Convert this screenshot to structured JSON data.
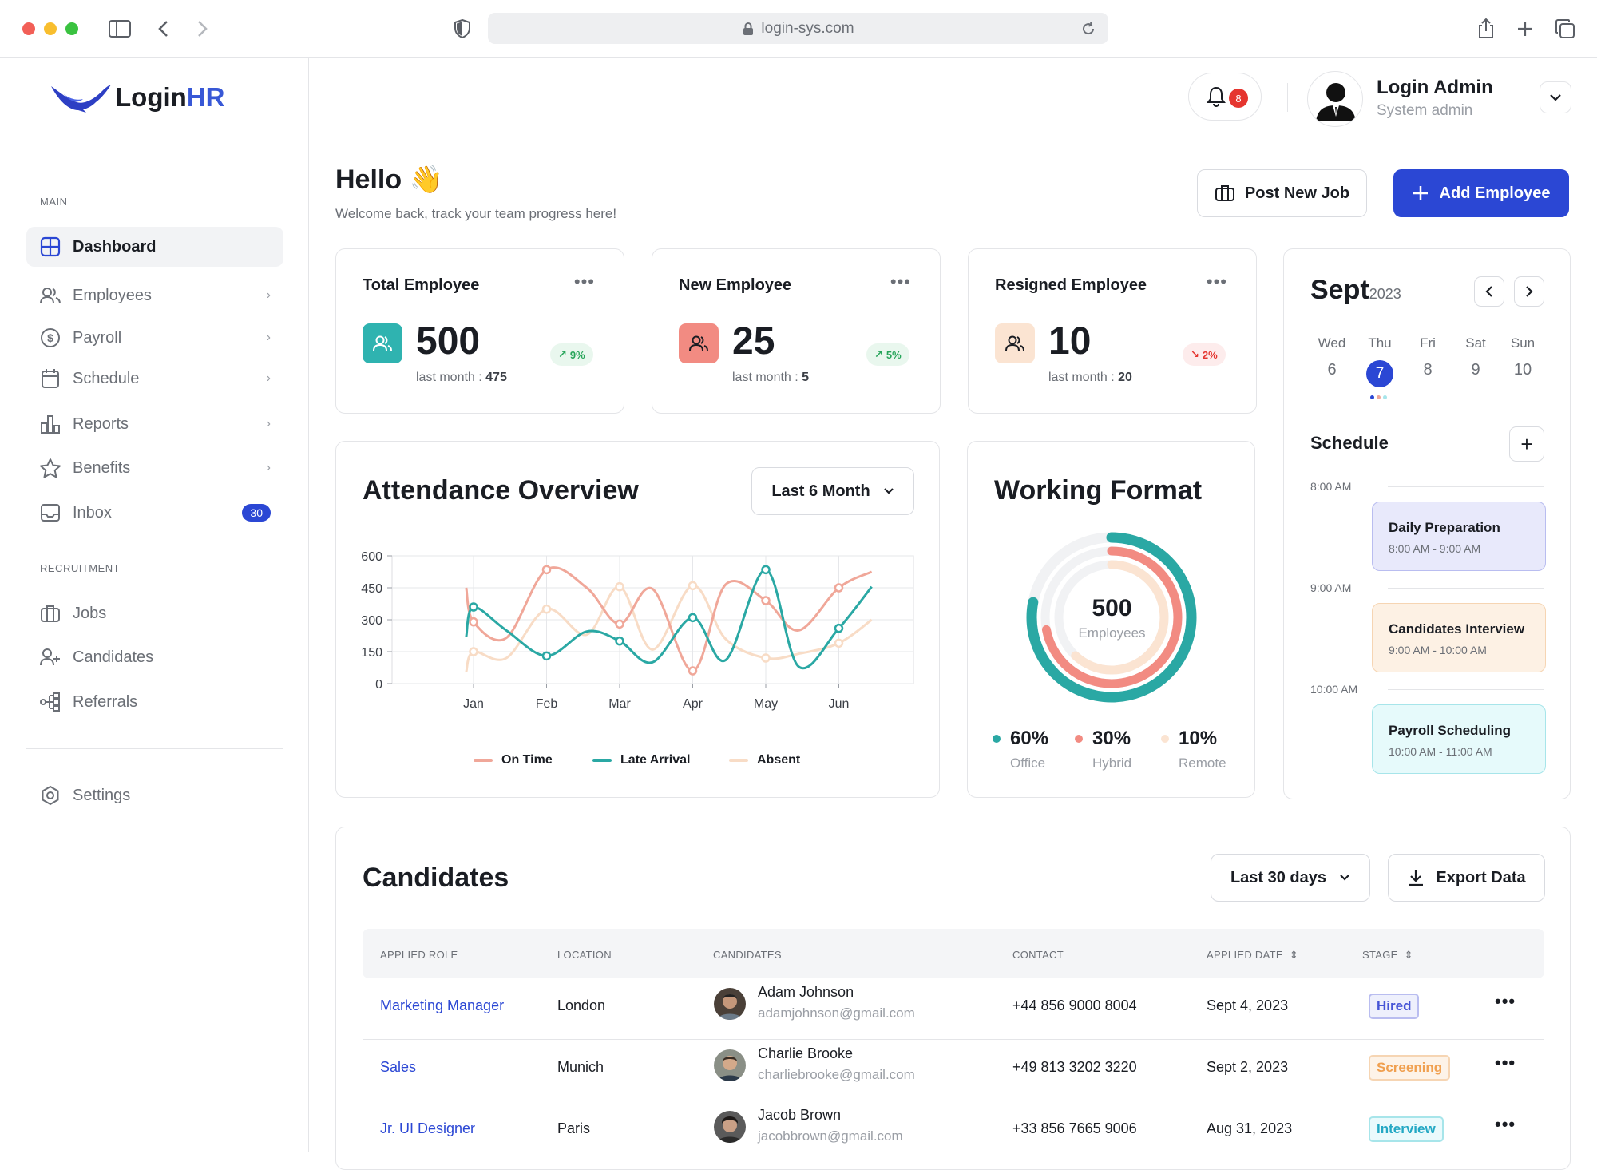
{
  "browser": {
    "url": "login-sys.com"
  },
  "app": {
    "logo_login": "Login",
    "logo_hr": "HR"
  },
  "header": {
    "notification_count": "8",
    "user_name": "Login Admin",
    "user_role": "System admin"
  },
  "sidebar": {
    "section_main": "MAIN",
    "section_recruitment": "RECRUITMENT",
    "items": [
      {
        "label": "Dashboard"
      },
      {
        "label": "Employees"
      },
      {
        "label": "Payroll"
      },
      {
        "label": "Schedule"
      },
      {
        "label": "Reports"
      },
      {
        "label": "Benefits"
      },
      {
        "label": "Inbox",
        "count": "30"
      },
      {
        "label": "Jobs"
      },
      {
        "label": "Candidates"
      },
      {
        "label": "Referrals"
      },
      {
        "label": "Settings"
      }
    ]
  },
  "greeting": {
    "title": "Hello 👋",
    "subtitle": "Welcome back, track your team progress here!"
  },
  "actions": {
    "post_job": "Post New Job",
    "add_employee": "Add Employee"
  },
  "stats": [
    {
      "title": "Total Employee",
      "value": "500",
      "last_label": "last month : ",
      "last_value": "475",
      "trend": "9%",
      "trend_dir": "up",
      "color": "#2fb3b0"
    },
    {
      "title": "New Employee",
      "value": "25",
      "last_label": "last month : ",
      "last_value": "5",
      "trend": "5%",
      "trend_dir": "up",
      "color": "#f28b82"
    },
    {
      "title": "Resigned Employee",
      "value": "10",
      "last_label": "last month : ",
      "last_value": "20",
      "trend": "2%",
      "trend_dir": "down",
      "color": "#fbe4d2"
    }
  ],
  "attendance": {
    "title": "Attendance Overview",
    "filter": "Last 6 Month"
  },
  "chart_data": {
    "type": "line",
    "categories": [
      "Jan",
      "Feb",
      "Mar",
      "Apr",
      "May",
      "Jun"
    ],
    "ylim": [
      0,
      600
    ],
    "yticks": [
      "600",
      "450",
      "300",
      "150",
      "0"
    ],
    "series": [
      {
        "name": "On Time",
        "color": "#f0a799",
        "x": [
          -0.1,
          0.0,
          0.45,
          1.0,
          1.55,
          2.0,
          2.45,
          3.0,
          3.45,
          4.0,
          4.45,
          5.0,
          5.45
        ],
        "values": [
          450,
          290,
          215,
          535,
          450,
          280,
          445,
          60,
          465,
          390,
          250,
          450,
          525
        ]
      },
      {
        "name": "Late Arrival",
        "color": "#2aa8a4",
        "x": [
          -0.1,
          0.0,
          0.45,
          1.0,
          1.55,
          2.0,
          2.45,
          3.0,
          3.45,
          4.0,
          4.45,
          5.0,
          5.45
        ],
        "values": [
          220,
          360,
          250,
          130,
          245,
          200,
          100,
          310,
          110,
          535,
          80,
          260,
          455
        ]
      },
      {
        "name": "Absent",
        "color": "#f8dcc6",
        "x": [
          -0.1,
          0.0,
          0.45,
          1.0,
          1.55,
          2.0,
          2.45,
          3.0,
          3.45,
          4.0,
          4.45,
          5.0,
          5.45
        ],
        "values": [
          55,
          150,
          120,
          350,
          230,
          455,
          160,
          460,
          210,
          120,
          140,
          190,
          300
        ]
      }
    ]
  },
  "working_format": {
    "title": "Working Format",
    "total": "500",
    "total_label": "Employees",
    "items": [
      {
        "pct": "60%",
        "label": "Office",
        "value": 0.6,
        "color": "#2aa8a4"
      },
      {
        "pct": "30%",
        "label": "Hybrid",
        "value": 0.3,
        "color": "#f28b82"
      },
      {
        "pct": "10%",
        "label": "Remote",
        "value": 0.1,
        "color": "#fbe4d2"
      }
    ]
  },
  "calendar": {
    "month": "Sept",
    "year": "2023",
    "days": [
      {
        "d": "Wed",
        "n": "6"
      },
      {
        "d": "Thu",
        "n": "7"
      },
      {
        "d": "Fri",
        "n": "8"
      },
      {
        "d": "Sat",
        "n": "9"
      },
      {
        "d": "Sun",
        "n": "10"
      }
    ],
    "selected": "7"
  },
  "schedule": {
    "title": "Schedule",
    "times": [
      "8:00 AM",
      "9:00 AM",
      "10:00 AM"
    ],
    "events": [
      {
        "title": "Daily Preparation",
        "time": "8:00 AM - 9:00 AM",
        "bg": "#e8e9fb",
        "border": "#b9bdf0"
      },
      {
        "title": "Candidates Interview",
        "time": "9:00 AM - 10:00 AM",
        "bg": "#fdf1e4",
        "border": "#f6d5b3"
      },
      {
        "title": "Payroll Scheduling",
        "time": "10:00 AM - 11:00 AM",
        "bg": "#e6fafb",
        "border": "#a7e5ea"
      }
    ]
  },
  "candidates": {
    "title": "Candidates",
    "filter": "Last 30 days",
    "export": "Export Data",
    "columns": [
      "APPLIED ROLE",
      "LOCATION",
      "CANDIDATES",
      "CONTACT",
      "APPLIED DATE",
      "STAGE"
    ],
    "rows": [
      {
        "role": "Marketing Manager",
        "location": "London",
        "name": "Adam Johnson",
        "email": "adamjohnson@gmail.com",
        "contact": "+44 856 9000 8004",
        "date": "Sept 4, 2023",
        "stage": "Hired",
        "stage_color": "#4655d6"
      },
      {
        "role": "Sales",
        "location": "Munich",
        "name": "Charlie Brooke",
        "email": "charliebrooke@gmail.com",
        "contact": "+49 813 3202 3220",
        "date": "Sept 2, 2023",
        "stage": "Screening",
        "stage_color": "#f0a050"
      },
      {
        "role": "Jr. UI Designer",
        "location": "Paris",
        "name": "Jacob Brown",
        "email": "jacobbrown@gmail.com",
        "contact": "+33 856 7665 9006",
        "date": "Aug 31, 2023",
        "stage": "Interview",
        "stage_color": "#23a8c4"
      }
    ]
  }
}
